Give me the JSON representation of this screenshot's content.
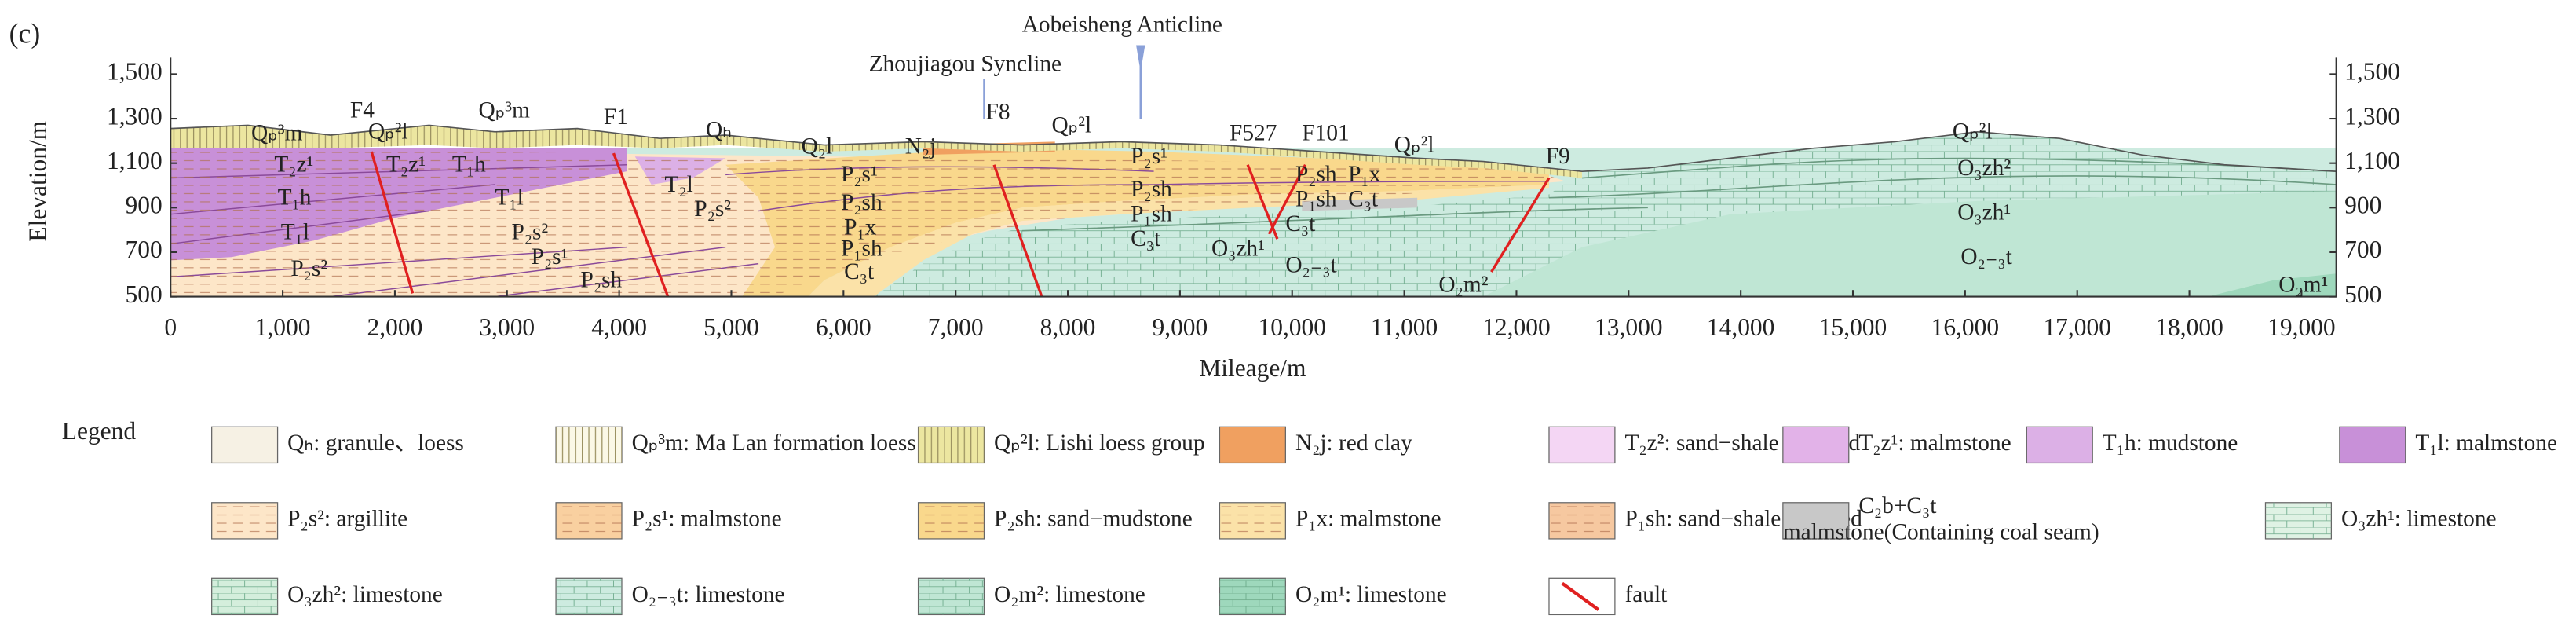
{
  "panel_label": "(c)",
  "annotations": {
    "anticline": "Aobeisheng  Anticline",
    "syncline": "Zhoujiagou Syncline"
  },
  "y_axis": {
    "title": "Elevation/m",
    "ticks": [
      500,
      700,
      900,
      {
        "value": 1100,
        "label": "1,100"
      },
      {
        "value": 1300,
        "label": "1,300"
      },
      {
        "value": 1500,
        "label": "1,500"
      }
    ]
  },
  "x_axis": {
    "title": "Mileage/m",
    "ticks": [
      0,
      {
        "value": 1000,
        "label": "1,000"
      },
      {
        "value": 2000,
        "label": "2,000"
      },
      {
        "value": 3000,
        "label": "3,000"
      },
      {
        "value": 4000,
        "label": "4,000"
      },
      {
        "value": 5000,
        "label": "5,000"
      },
      {
        "value": 6000,
        "label": "6,000"
      },
      {
        "value": 7000,
        "label": "7,000"
      },
      {
        "value": 8000,
        "label": "8,000"
      },
      {
        "value": 9000,
        "label": "9,000"
      },
      {
        "value": 10000,
        "label": "10,000"
      },
      {
        "value": 11000,
        "label": "11,000"
      },
      {
        "value": 12000,
        "label": "12,000"
      },
      {
        "value": 13000,
        "label": "13,000"
      },
      {
        "value": 14000,
        "label": "14,000"
      },
      {
        "value": 15000,
        "label": "15,000"
      },
      {
        "value": 16000,
        "label": "16,000"
      },
      {
        "value": 17000,
        "label": "17,000"
      },
      {
        "value": 18000,
        "label": "18,000"
      },
      {
        "value": 19000,
        "label": "19,000"
      }
    ]
  },
  "section": {
    "labels": [
      "Qₚ³m",
      "F4",
      "Qₚ²l",
      "Qₚ³m",
      "F1",
      "Qₕ",
      "T₂z¹",
      "T₂z¹",
      "T₁h",
      "T₁h",
      "T₁l",
      "P₂s²",
      "T₁l",
      "P₂s²",
      "P₂s¹",
      "P₂sh",
      "T₂l",
      "P₂s²",
      "Q₂l",
      "P₂s¹",
      "P₂sh",
      "P₁x",
      "P₁sh",
      "C₃t",
      "N₂j",
      "F8",
      "Qₚ²l",
      "P₂s¹",
      "P₂sh",
      "P₁sh",
      "C₃t",
      "F527",
      "F101",
      "P₂sh",
      "P₁x",
      "P₁sh",
      "C₃t",
      "C₃t",
      "O₃zh¹",
      "O₂₋₃t",
      "Qₚ²l",
      "F9",
      "O₂m²",
      "Qₚ²l",
      "O₃zh²",
      "O₃zh¹",
      "O₂₋₃t",
      "O₂m¹"
    ]
  },
  "legend": {
    "title": "Legend",
    "items": [
      {
        "label": "Qₕ: granule、loess",
        "color": "#f6f1e4"
      },
      {
        "label": "Qₚ³m: Ma Lan formation loess",
        "color": "#fbf8e6"
      },
      {
        "label": "Qₚ²l: Lishi loess group",
        "color": "#ece6a0"
      },
      {
        "label": "N₂j: red clay",
        "color": "#f0a060"
      },
      {
        "label": "T₂z²: sand−shale interbed",
        "color": "#f4d6f4"
      },
      {
        "label": "T₂z¹: malmstone",
        "color": "#e2b2e8"
      },
      {
        "label": "T₁h: mudstone",
        "color": "#dcb0e6"
      },
      {
        "label": "T₁l: malmstone",
        "color": "#c890d8"
      },
      {
        "label": "P₂s²: argillite",
        "color": "#fde6c8"
      },
      {
        "label": "P₂s¹: malmstone",
        "color": "#f9d0a0"
      },
      {
        "label": "P₂sh: sand−mudstone",
        "color": "#f9d88c"
      },
      {
        "label": "P₁x: malmstone",
        "color": "#fbe2a8"
      },
      {
        "label": "P₁sh: sand−shale interbed",
        "color": "#f6c8a0"
      },
      {
        "label": "C₂b+C₃t",
        "color": "#c8c8c8"
      },
      {
        "label": "malmstone(Containing coal seam)",
        "color": "#c8c8c8"
      },
      {
        "label": "O₃zh¹: limestone",
        "color": "#dff2e4"
      },
      {
        "label": "O₃zh²: limestone",
        "color": "#d4eedc"
      },
      {
        "label": "O₂₋₃t: limestone",
        "color": "#cdebe0"
      },
      {
        "label": "O₂m²: limestone",
        "color": "#bfe6d4"
      },
      {
        "label": "O₂m¹: limestone",
        "color": "#9ed8bc"
      },
      {
        "label": "fault",
        "color": "#e02020"
      }
    ]
  }
}
